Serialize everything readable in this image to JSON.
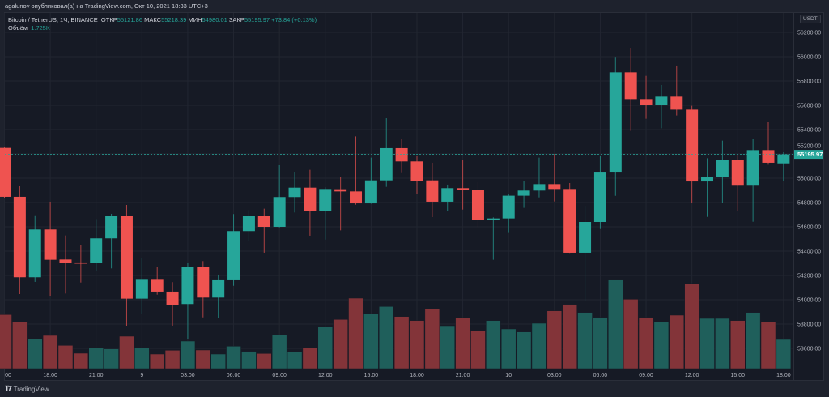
{
  "header": {
    "published": "agalunov опубликовал(а) на TradingView.com, Окт 10, 2021 18:33 UTC+3"
  },
  "legend": {
    "symbol": "Bitcoin / TetherUS, 1Ч, BINANCE",
    "open_label": "ОТКР",
    "open": "55121.86",
    "high_label": "МАКС",
    "high": "55218.39",
    "low_label": "МИН",
    "low": "54980.01",
    "close_label": "ЗАКР",
    "close": "55195.97",
    "change": "+73.84 (+0.13%)",
    "volume_label": "Объём",
    "volume": "1.725K"
  },
  "price_axis": {
    "currency": "USDT",
    "ticks": [
      "56200.00",
      "56000.00",
      "55800.00",
      "55600.00",
      "55400.00",
      "55200.00",
      "55000.00",
      "54800.00",
      "54600.00",
      "54400.00",
      "54200.00",
      "54000.00",
      "53800.00",
      "53600.00"
    ],
    "last_price": "55195.97"
  },
  "time_axis": {
    "labels": [
      {
        "i": 0,
        "t": "00"
      },
      {
        "i": 3,
        "t": "18:00"
      },
      {
        "i": 6,
        "t": "21:00"
      },
      {
        "i": 9,
        "t": "9"
      },
      {
        "i": 12,
        "t": "03:00"
      },
      {
        "i": 15,
        "t": "06:00"
      },
      {
        "i": 18,
        "t": "09:00"
      },
      {
        "i": 21,
        "t": "12:00"
      },
      {
        "i": 24,
        "t": "15:00"
      },
      {
        "i": 27,
        "t": "18:00"
      },
      {
        "i": 30,
        "t": "21:00"
      },
      {
        "i": 33,
        "t": "10"
      },
      {
        "i": 36,
        "t": "03:00"
      },
      {
        "i": 39,
        "t": "06:00"
      },
      {
        "i": 42,
        "t": "09:00"
      },
      {
        "i": 45,
        "t": "12:00"
      },
      {
        "i": 48,
        "t": "15:00"
      },
      {
        "i": 51,
        "t": "18:00"
      }
    ]
  },
  "footer": {
    "logo_mark": "17",
    "brand": "TradingView"
  },
  "colors": {
    "up": "#26a69a",
    "down": "#ef5350",
    "up_volume": "#1f5f5b",
    "down_volume": "#833439",
    "grid": "#222631",
    "bg": "#161a25"
  },
  "chart_data": {
    "type": "candlestick",
    "symbol": "BTCUSDT",
    "interval": "1h",
    "ylim": [
      53500,
      56300
    ],
    "ohlc": [
      [
        55249,
        55260,
        54840,
        54847
      ],
      [
        54847,
        54940,
        54047,
        54185
      ],
      [
        54185,
        54695,
        54147,
        54578
      ],
      [
        54578,
        54807,
        54033,
        54329
      ],
      [
        54331,
        54529,
        54051,
        54305
      ],
      [
        54307,
        54453,
        54142,
        54298
      ],
      [
        54305,
        54664,
        54240,
        54505
      ],
      [
        54505,
        54707,
        54258,
        54691
      ],
      [
        54691,
        54780,
        53787,
        54009
      ],
      [
        54009,
        54340,
        53887,
        54171
      ],
      [
        54171,
        54273,
        54042,
        54067
      ],
      [
        54067,
        54145,
        53787,
        53960
      ],
      [
        53965,
        54307,
        53680,
        54271
      ],
      [
        54271,
        54318,
        53855,
        54018
      ],
      [
        54018,
        54207,
        53851,
        54167
      ],
      [
        54167,
        54705,
        54115,
        54565
      ],
      [
        54565,
        54738,
        54485,
        54691
      ],
      [
        54691,
        54749,
        54387,
        54600
      ],
      [
        54600,
        55107,
        54595,
        54845
      ],
      [
        54845,
        55053,
        54718,
        54922
      ],
      [
        54922,
        55069,
        54527,
        54731
      ],
      [
        54731,
        54925,
        54495,
        54911
      ],
      [
        54909,
        55013,
        54571,
        54891
      ],
      [
        54891,
        55344,
        54782,
        54793
      ],
      [
        54793,
        55169,
        54790,
        54982
      ],
      [
        54982,
        55493,
        54929,
        55247
      ],
      [
        55247,
        55320,
        55049,
        55138
      ],
      [
        55138,
        55182,
        54869,
        54980
      ],
      [
        54982,
        55127,
        54680,
        54807
      ],
      [
        54807,
        54947,
        54731,
        54918
      ],
      [
        54918,
        55153,
        54742,
        54902
      ],
      [
        54900,
        54967,
        54598,
        54660
      ],
      [
        54660,
        54678,
        54329,
        54669
      ],
      [
        54669,
        54867,
        54556,
        54856
      ],
      [
        54856,
        54976,
        54756,
        54898
      ],
      [
        54898,
        55169,
        54842,
        54951
      ],
      [
        54951,
        55200,
        54809,
        54911
      ],
      [
        54911,
        54960,
        54385,
        54387
      ],
      [
        54387,
        54773,
        53987,
        54640
      ],
      [
        54640,
        55182,
        54582,
        55053
      ],
      [
        55053,
        55998,
        54855,
        55871
      ],
      [
        55871,
        56073,
        55389,
        55651
      ],
      [
        55651,
        55842,
        55489,
        55605
      ],
      [
        55605,
        55767,
        55411,
        55671
      ],
      [
        55671,
        55927,
        55516,
        55564
      ],
      [
        55564,
        55596,
        54793,
        54973
      ],
      [
        54973,
        55164,
        54682,
        55011
      ],
      [
        55011,
        55309,
        54800,
        55151
      ],
      [
        55151,
        55196,
        54727,
        54945
      ],
      [
        54945,
        55324,
        54642,
        55231
      ],
      [
        55231,
        55462,
        55111,
        55127
      ],
      [
        55121.86,
        55218.39,
        54980.01,
        55195.97
      ]
    ],
    "volume": [
      3194,
      2763,
      1773,
      1964,
      1373,
      910,
      1246,
      1166,
      1916,
      1214,
      862,
      1086,
      1629,
      1102,
      862,
      1326,
      1022,
      894,
      1996,
      974,
      1246,
      2475,
      2907,
      4168,
      3226,
      3673,
      3082,
      2843,
      3529,
      2539,
      3018,
      2236,
      2843,
      2348,
      2172,
      2683,
      3418,
      3801,
      3322,
      3034,
      5286,
      4104,
      3034,
      2763,
      3162,
      5031,
      2970,
      2970,
      2843,
      3322,
      2763,
      1725
    ]
  }
}
